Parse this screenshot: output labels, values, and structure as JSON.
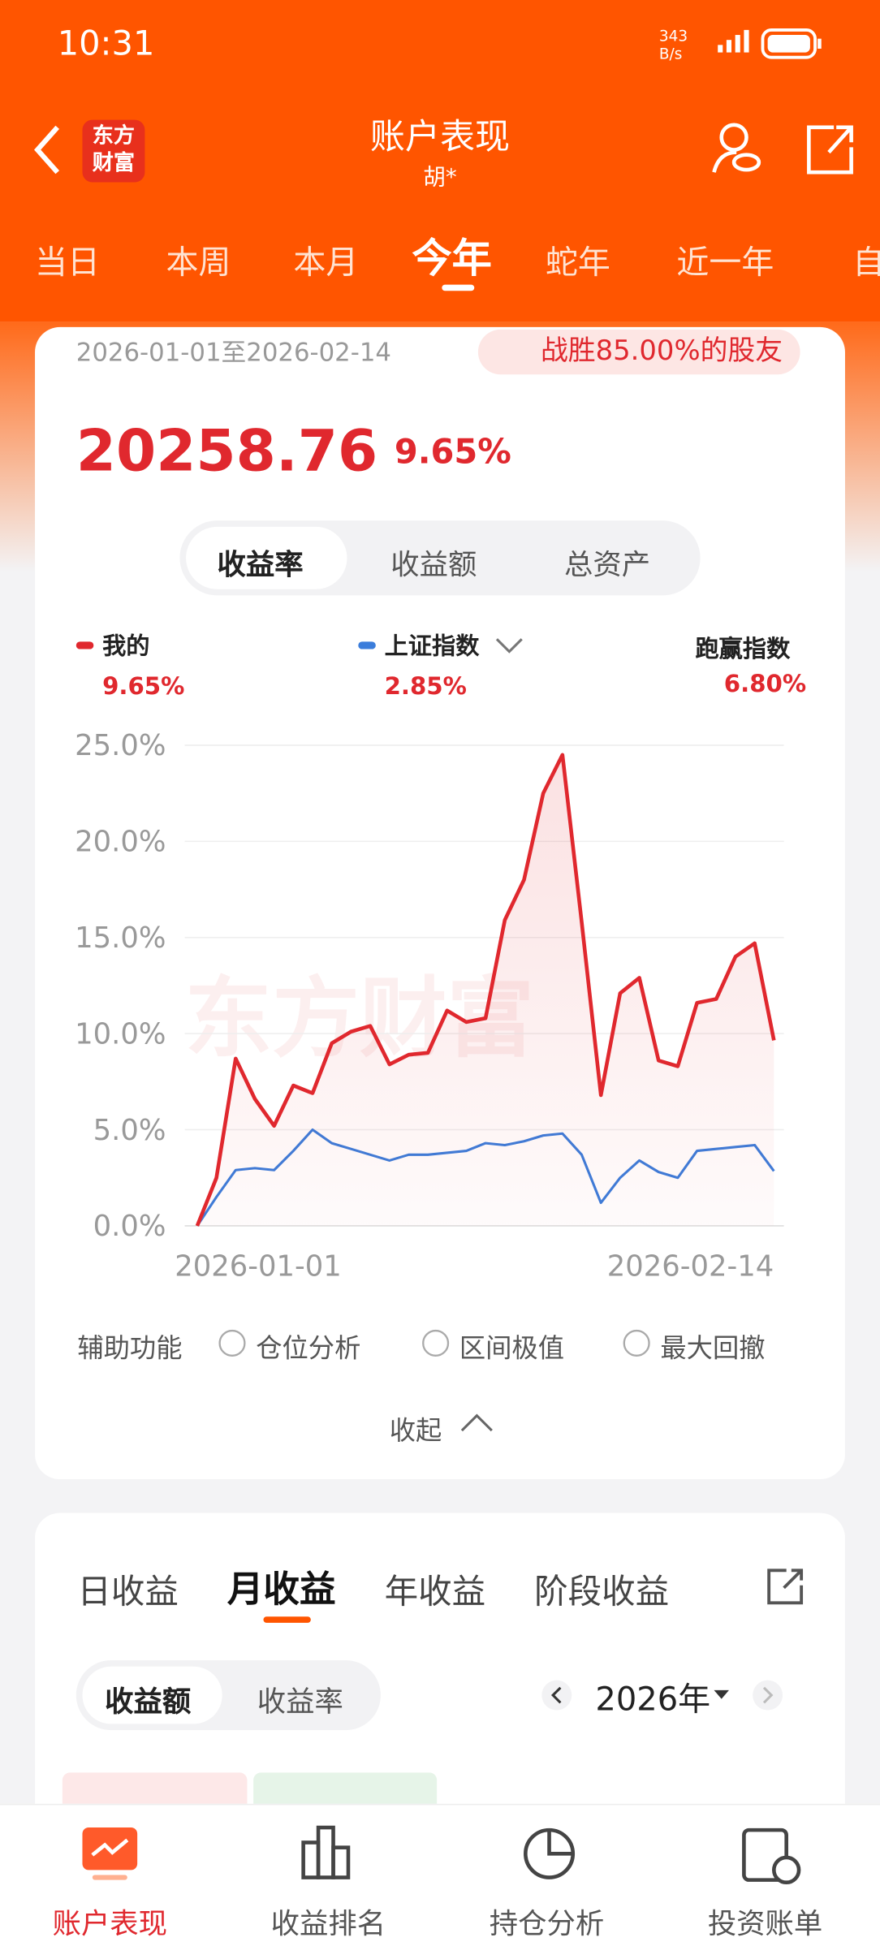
{
  "status": {
    "time": "10:31",
    "net": "343 B/s"
  },
  "header": {
    "logo": "东方财富",
    "title": "账户表现",
    "subtitle": "胡*"
  },
  "tabs": [
    "当日",
    "本周",
    "本月",
    "今年",
    "蛇年",
    "近一年",
    "自"
  ],
  "summary": {
    "date_range": "2026-01-01至2026-02-14",
    "beat": "战胜85.00%的股友",
    "amount": "20258.76",
    "rate": "9.65%"
  },
  "toggle": [
    "收益率",
    "收益额",
    "总资产"
  ],
  "legend_values": [
    "9.65%",
    "2.85%"
  ],
  "beat_index": {
    "label": "跑赢指数",
    "value": "6.80%"
  },
  "watermark": "东方财富",
  "chart_data": {
    "type": "line",
    "x": [
      "2026-01-01",
      null,
      null,
      null,
      null,
      null,
      null,
      null,
      null,
      null,
      null,
      null,
      null,
      null,
      null,
      null,
      null,
      null,
      null,
      null,
      null,
      null,
      null,
      null,
      null,
      null,
      null,
      null,
      null,
      null,
      "2026-02-14"
    ],
    "series": [
      {
        "name": "我的",
        "color": "#e0282e",
        "values": [
          0,
          2.5,
          8.7,
          6.6,
          5.2,
          7.3,
          6.9,
          9.5,
          10.1,
          10.4,
          8.4,
          8.9,
          9.0,
          11.2,
          10.6,
          10.8,
          15.9,
          18.0,
          22.5,
          24.5,
          15.8,
          6.8,
          12.1,
          12.9,
          8.6,
          8.3,
          11.6,
          11.8,
          14.0,
          14.7,
          9.65
        ]
      },
      {
        "name": "上证指数",
        "color": "#3b7ddb",
        "values": [
          0,
          1.5,
          2.9,
          3.0,
          2.9,
          3.9,
          5.0,
          4.3,
          4.0,
          3.7,
          3.4,
          3.7,
          3.7,
          3.8,
          3.9,
          4.3,
          4.2,
          4.4,
          4.7,
          4.8,
          3.7,
          1.2,
          2.5,
          3.4,
          2.8,
          2.5,
          3.9,
          4.0,
          4.1,
          4.2,
          2.85
        ]
      }
    ],
    "ylim": [
      0,
      25
    ],
    "yticks": [
      {
        "value": 0,
        "label": "0.0%"
      },
      {
        "value": 5,
        "label": "5.0%"
      },
      {
        "value": 10,
        "label": "10.0%"
      },
      {
        "value": 15,
        "label": "15.0%"
      },
      {
        "value": 20,
        "label": "20.0%"
      },
      {
        "value": 25,
        "label": "25.0%"
      }
    ],
    "grid": true
  },
  "aux": {
    "label": "辅助功能",
    "options": [
      "仓位分析",
      "区间极值",
      "最大回撤"
    ],
    "collapse": "收起"
  },
  "profit_tabs": [
    "日收益",
    "月收益",
    "年收益",
    "阶段收益"
  ],
  "profit_toggle": [
    "收益额",
    "收益率"
  ],
  "year": "2026年",
  "nav": [
    "账户表现",
    "收益排名",
    "持仓分析",
    "投资账单"
  ]
}
